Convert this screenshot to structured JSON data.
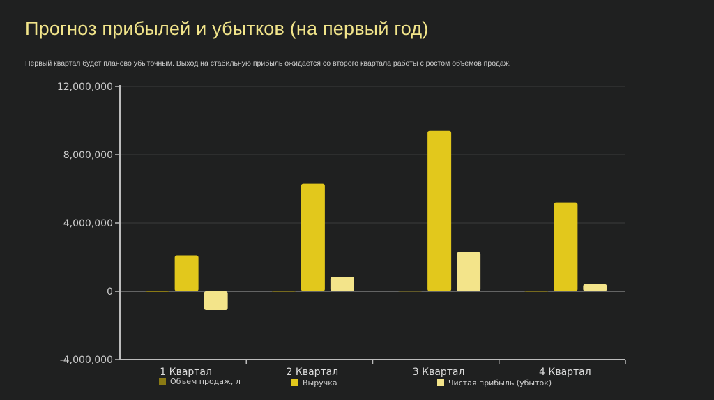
{
  "slide": {
    "title": "Прогноз прибылей и убытков (на первый год)",
    "subtitle": "Первый квартал будет планово убыточным. Выход на стабильную прибыль ожидается со второго квартала работы с ростом объемов продаж."
  },
  "chart_data": {
    "type": "bar",
    "categories": [
      "1 Квартал",
      "2 Квартал",
      "3 Квартал",
      "4 Квартал"
    ],
    "series": [
      {
        "name": "Объем продаж, л",
        "color": "#8a7a14",
        "values": [
          10000,
          20000,
          30000,
          20000
        ]
      },
      {
        "name": "Выручка",
        "color": "#e2c81c",
        "values": [
          2100000,
          6300000,
          9400000,
          5200000
        ]
      },
      {
        "name": "Чистая прибыль (убыток)",
        "color": "#f3e48a",
        "values": [
          -1100000,
          850000,
          2300000,
          420000
        ]
      }
    ],
    "yticks": [
      "12,000,000",
      "8,000,000",
      "4,000,000",
      "0",
      "-4,000,000"
    ],
    "ylim": [
      -4000000,
      12000000
    ],
    "grid": true,
    "legend_position": "bottom"
  }
}
